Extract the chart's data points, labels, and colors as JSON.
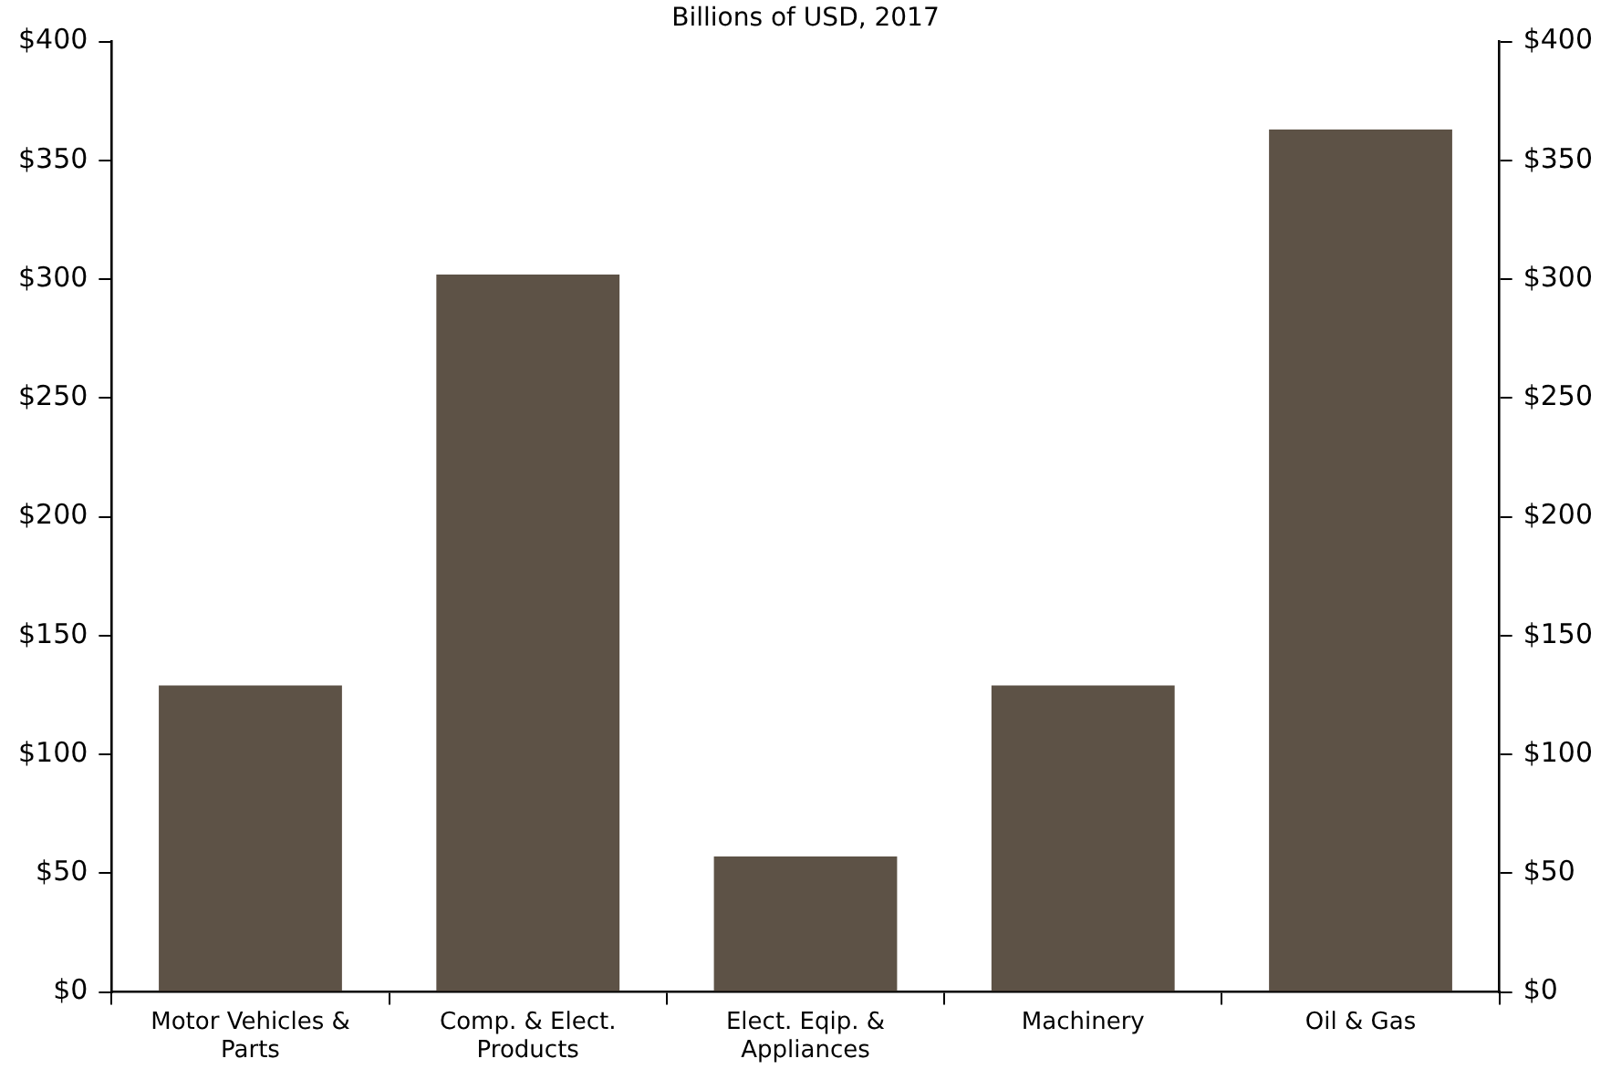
{
  "chart_data": {
    "type": "bar",
    "title": "Billions of USD, 2017",
    "categories": [
      "Motor Vehicles & Parts",
      "Comp. & Elect. Products",
      "Elect. Eqip. & Appliances",
      "Machinery",
      "Oil & Gas"
    ],
    "values": [
      129,
      302,
      57,
      129,
      363
    ],
    "color": "#5d5246",
    "ylim": [
      0,
      400
    ],
    "yticks": [
      {
        "value": 0,
        "label": "$0"
      },
      {
        "value": 50,
        "label": "$50"
      },
      {
        "value": 100,
        "label": "$100"
      },
      {
        "value": 150,
        "label": "$150"
      },
      {
        "value": 200,
        "label": "$200"
      },
      {
        "value": 250,
        "label": "$250"
      },
      {
        "value": 300,
        "label": "$300"
      },
      {
        "value": 350,
        "label": "$350"
      },
      {
        "value": 400,
        "label": "$400"
      }
    ],
    "y2lim": [
      0,
      400
    ],
    "y2ticks": [
      {
        "value": 0,
        "label": "$0"
      },
      {
        "value": 50,
        "label": "$50"
      },
      {
        "value": 100,
        "label": "$100"
      },
      {
        "value": 150,
        "label": "$150"
      },
      {
        "value": 200,
        "label": "$200"
      },
      {
        "value": 250,
        "label": "$250"
      },
      {
        "value": 300,
        "label": "$300"
      },
      {
        "value": 350,
        "label": "$350"
      },
      {
        "value": 400,
        "label": "$400"
      }
    ],
    "grid": false,
    "legend": false
  }
}
